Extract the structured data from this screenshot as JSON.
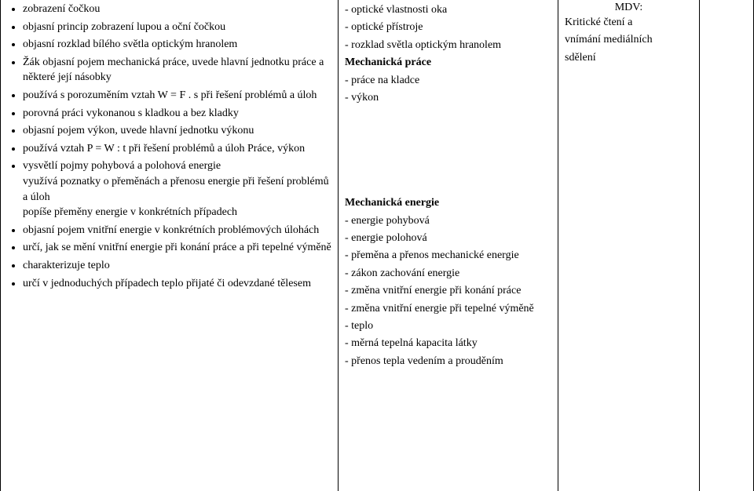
{
  "col1": {
    "groupA": [
      "zobrazení čočkou",
      "objasní princip zobrazení lupou a oční čočkou",
      "objasní rozklad bílého světla optickým hranolem",
      "Žák objasní pojem mechanická práce, uvede hlavní jednotku práce a některé její násobky",
      "používá s porozuměním vztah  W = F . s  při řešení problémů a úloh",
      "porovná práci vykonanou s kladkou a bez kladky",
      "objasní pojem výkon, uvede hlavní jednotku výkonu",
      "používá vztah P = W : t   při řešení problémů a úloh Práce, výkon"
    ],
    "groupB": [
      "vysvětlí pojmy pohybová a polohová energie"
    ],
    "groupB_sub": [
      "využívá poznatky o přeměnách a přenosu energie při řešení problémů a úloh",
      "popíše přeměny energie v konkrétních případech"
    ],
    "groupC": [
      "objasní pojem vnitřní energie v konkrétních problémových úlohách",
      "určí, jak se mění vnitřní energie při konání práce a při tepelné výměně",
      "charakterizuje teplo",
      "určí v jednoduchých případech teplo přijaté či odevzdané tělesem"
    ]
  },
  "col2": {
    "lines": [
      {
        "t": "- optické vlastnosti oka"
      },
      {
        "t": "- optické přístroje"
      },
      {
        "t": "- rozklad světla optickým hranolem"
      },
      {
        "t": "Mechanická práce",
        "bold": true
      },
      {
        "t": "- práce na kladce"
      },
      {
        "t": "- výkon"
      },
      {
        "t": ""
      },
      {
        "t": ""
      },
      {
        "t": ""
      },
      {
        "t": ""
      },
      {
        "t": ""
      },
      {
        "t": "Mechanická energie",
        "bold": true
      },
      {
        "t": "- energie pohybová"
      },
      {
        "t": "- energie polohová"
      },
      {
        "t": "- přeměna a přenos mechanické energie"
      },
      {
        "t": "- zákon zachování energie"
      },
      {
        "t": "- změna vnitřní energie při konání práce"
      },
      {
        "t": "- změna vnitřní energie při tepelné výměně"
      },
      {
        "t": "- teplo"
      },
      {
        "t": "- měrná tepelná kapacita látky"
      },
      {
        "t": "- přenos tepla vedením a prouděním"
      }
    ]
  },
  "col3": {
    "title": "MDV:",
    "lines": [
      "Kritické čtení a",
      "vnímání mediálních",
      "sdělení"
    ]
  }
}
